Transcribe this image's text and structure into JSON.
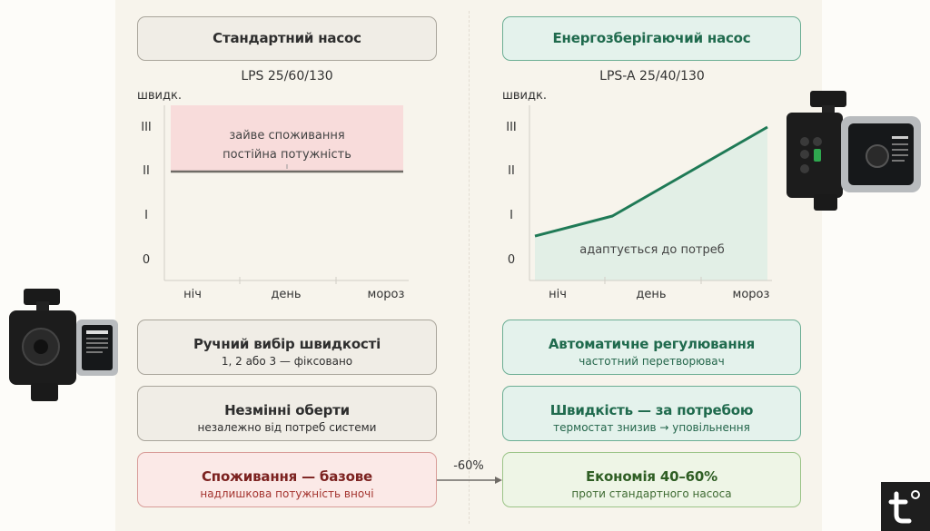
{
  "left": {
    "header": "Стандартний насос",
    "model": "LPS 25/60/130",
    "chart": {
      "ylabel": "швидк.",
      "yticks": [
        "III",
        "II",
        "I",
        "0"
      ],
      "xticks": [
        "ніч",
        "день",
        "мороз"
      ],
      "note_line1": "зайве споживання",
      "note_line2": "постійна потужність",
      "speed_level": 2
    },
    "cards": [
      {
        "title": "Ручний вибір швидкості",
        "subtitle": "1, 2 або 3 — фіксовано"
      },
      {
        "title": "Незмінні оберти",
        "subtitle": "незалежно від потреб системи"
      },
      {
        "title": "Споживання — базове",
        "subtitle": "надлишкова потужність вночі"
      }
    ]
  },
  "right": {
    "header": "Енергозберігаючий насос",
    "model": "LPS-A 25/40/130",
    "chart": {
      "ylabel": "швидк.",
      "yticks": [
        "III",
        "II",
        "I",
        "0"
      ],
      "xticks": [
        "ніч",
        "день",
        "мороз"
      ],
      "note": "адаптується до потреб",
      "curve": [
        0.55,
        1.0,
        2.0,
        3.0
      ]
    },
    "cards": [
      {
        "title": "Автоматичне регулювання",
        "subtitle": "частотний перетворювач"
      },
      {
        "title": "Швидкість — за потребою",
        "subtitle": "термостат знизив → уповільнення"
      },
      {
        "title": "Економія 40–60%",
        "subtitle": "проти стандартного насоса"
      }
    ]
  },
  "arrow_label": "-60%",
  "colors": {
    "accent_green": "#1f7a56",
    "waste_red": "#f8dcdb",
    "line_grey": "#6f6b66"
  },
  "icons": [
    "pump-standard-icon",
    "pump-efficient-icon",
    "brand-logo-icon"
  ]
}
